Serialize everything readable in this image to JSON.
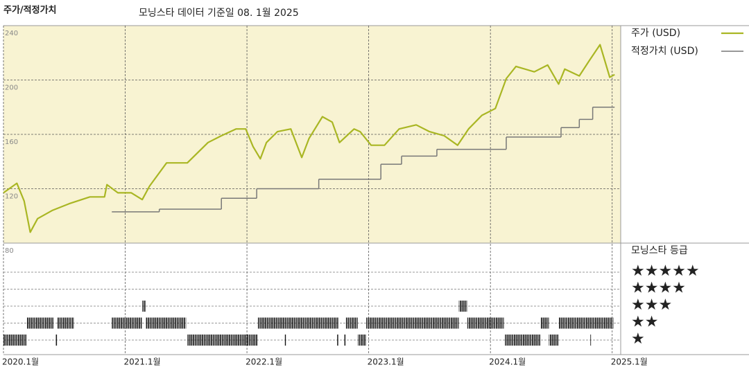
{
  "chart_data": {
    "type": "line",
    "title": "주가/적정가치",
    "subtitle": "모닝스타 데이터 기준일 08. 1월 2025",
    "xlim": [
      2020,
      2025.07
    ],
    "xticks": [
      {
        "value": 2020,
        "label": "2020.1월"
      },
      {
        "value": 2021,
        "label": "2021.1월"
      },
      {
        "value": 2022,
        "label": "2022.1월"
      },
      {
        "value": 2023,
        "label": "2023.1월"
      },
      {
        "value": 2024,
        "label": "2024.1월"
      },
      {
        "value": 2025,
        "label": "2025.1월"
      }
    ],
    "ylim": [
      80,
      240
    ],
    "yticks": [
      80,
      120,
      160,
      200,
      240
    ],
    "grid": true,
    "series": [
      {
        "name": "주가 (USD)",
        "color": "#a9b623",
        "x": [
          2020.0,
          2020.11,
          2020.17,
          2020.22,
          2020.28,
          2020.4,
          2020.54,
          2020.71,
          2020.83,
          2020.85,
          2020.94,
          2021.05,
          2021.14,
          2021.2,
          2021.34,
          2021.51,
          2021.68,
          2021.79,
          2021.91,
          2021.99,
          2022.05,
          2022.11,
          2022.16,
          2022.25,
          2022.36,
          2022.45,
          2022.51,
          2022.62,
          2022.7,
          2022.76,
          2022.88,
          2022.93,
          2023.02,
          2023.13,
          2023.25,
          2023.39,
          2023.5,
          2023.62,
          2023.73,
          2023.82,
          2023.93,
          2024.04,
          2024.13,
          2024.21,
          2024.36,
          2024.47,
          2024.56,
          2024.61,
          2024.73,
          2024.81,
          2024.9,
          2024.98,
          2025.02
        ],
        "values": [
          117,
          124,
          111,
          88,
          98,
          104,
          109,
          114,
          114,
          123,
          117,
          117,
          112,
          122,
          139,
          139,
          154,
          159,
          164,
          164,
          151,
          142,
          154,
          162,
          164,
          143,
          157,
          173,
          169,
          154,
          164,
          162,
          152,
          152,
          164,
          167,
          162,
          159,
          152,
          164,
          174,
          179,
          201,
          210,
          206,
          211,
          197,
          208,
          203,
          214,
          226,
          202,
          204
        ]
      },
      {
        "name": "적정가치 (USD)",
        "color": "#777777",
        "step": true,
        "x": [
          2020.89,
          2021.28,
          2021.79,
          2022.08,
          2022.59,
          2023.1,
          2023.27,
          2023.56,
          2024.13,
          2024.58,
          2024.73,
          2024.84,
          2025.02
        ],
        "values": [
          103,
          105,
          113,
          120,
          127,
          138,
          144,
          149,
          158,
          165,
          171,
          180,
          180
        ]
      }
    ],
    "rating": {
      "title": "모닝스타 등급",
      "levels": [
        {
          "value": 5,
          "label": "★★★★★"
        },
        {
          "value": 4,
          "label": "★★★★"
        },
        {
          "value": 3,
          "label": "★★★"
        },
        {
          "value": 2,
          "label": "★★"
        },
        {
          "value": 1,
          "label": "★"
        }
      ],
      "periods": [
        {
          "start": 2020.0,
          "end": 2020.19,
          "rating": 1
        },
        {
          "start": 2020.19,
          "end": 2020.41,
          "rating": 2
        },
        {
          "start": 2020.43,
          "end": 2020.44,
          "rating": 1
        },
        {
          "start": 2020.44,
          "end": 2020.58,
          "rating": 2
        },
        {
          "start": 2020.89,
          "end": 2021.14,
          "rating": 2
        },
        {
          "start": 2021.14,
          "end": 2021.17,
          "rating": 3
        },
        {
          "start": 2021.17,
          "end": 2021.5,
          "rating": 2
        },
        {
          "start": 2021.51,
          "end": 2022.09,
          "rating": 1
        },
        {
          "start": 2022.09,
          "end": 2022.75,
          "rating": 2
        },
        {
          "start": 2022.31,
          "end": 2022.32,
          "rating": 1
        },
        {
          "start": 2022.74,
          "end": 2022.75,
          "rating": 1
        },
        {
          "start": 2022.8,
          "end": 2022.81,
          "rating": 1
        },
        {
          "start": 2022.81,
          "end": 2022.91,
          "rating": 2
        },
        {
          "start": 2022.91,
          "end": 2022.98,
          "rating": 1
        },
        {
          "start": 2022.98,
          "end": 2023.74,
          "rating": 2
        },
        {
          "start": 2023.74,
          "end": 2023.81,
          "rating": 3
        },
        {
          "start": 2023.81,
          "end": 2024.11,
          "rating": 2
        },
        {
          "start": 2024.12,
          "end": 2024.41,
          "rating": 1
        },
        {
          "start": 2024.41,
          "end": 2024.48,
          "rating": 2
        },
        {
          "start": 2024.48,
          "end": 2024.56,
          "rating": 1
        },
        {
          "start": 2024.56,
          "end": 2025.01,
          "rating": 2
        },
        {
          "start": 2024.82,
          "end": 2024.83,
          "rating": 1
        }
      ]
    }
  }
}
